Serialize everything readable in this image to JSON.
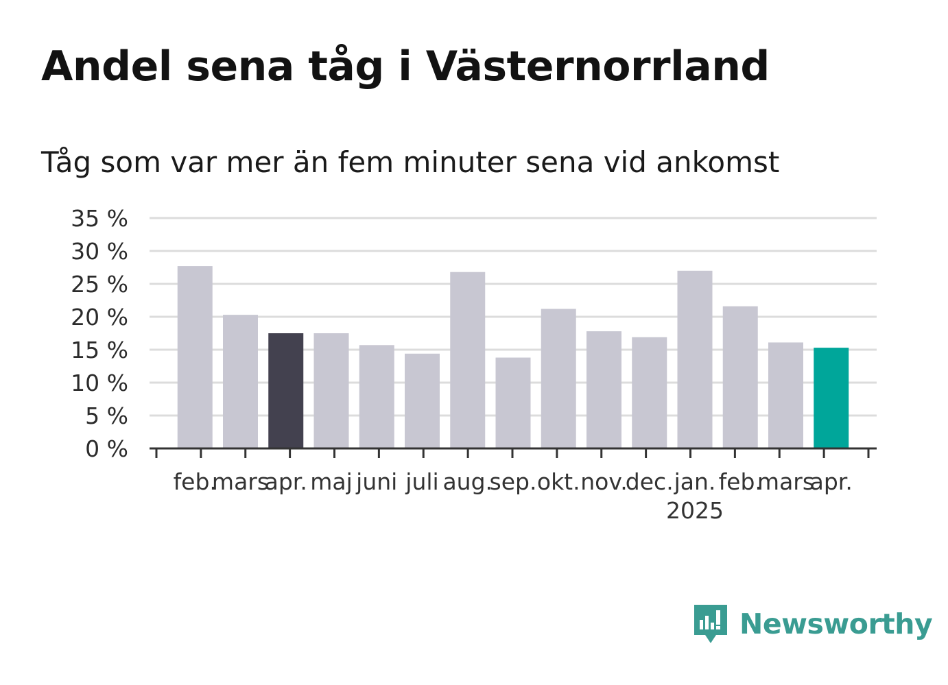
{
  "title": "Andel sena tåg i Västernorrland",
  "subtitle": "Tåg som var mer än fem minuter sena vid ankomst",
  "brand": "Newsworthy",
  "colors": {
    "bar_default": "#c8c7d2",
    "bar_reference": "#43414f",
    "bar_latest": "#00a69a",
    "gridline": "#dcdcdc",
    "axis": "#333333",
    "brand": "#3a9c92"
  },
  "chart_data": {
    "type": "bar",
    "title": "Andel sena tåg i Västernorrland",
    "subtitle": "Tåg som var mer än fem minuter sena vid ankomst",
    "categories": [
      "feb.",
      "mars",
      "apr.",
      "maj",
      "juni",
      "juli",
      "aug.",
      "sep.",
      "okt.",
      "nov.",
      "dec.",
      "jan.",
      "feb.",
      "mars",
      "apr."
    ],
    "year_labels": [
      {
        "index": 11,
        "label": "2025"
      }
    ],
    "values": [
      27.7,
      20.3,
      17.5,
      17.5,
      15.7,
      14.4,
      26.8,
      13.8,
      21.2,
      17.8,
      16.9,
      27.0,
      21.6,
      16.1,
      15.3
    ],
    "highlight": {
      "2": "reference",
      "14": "latest"
    },
    "ylim": [
      0,
      35
    ],
    "yticks": [
      0,
      5,
      10,
      15,
      20,
      25,
      30,
      35
    ],
    "ytick_labels": [
      "0 %",
      "5 %",
      "10 %",
      "15 %",
      "20 %",
      "25 %",
      "30 %",
      "35 %"
    ],
    "xlabel": "",
    "ylabel": "",
    "grid": true
  }
}
